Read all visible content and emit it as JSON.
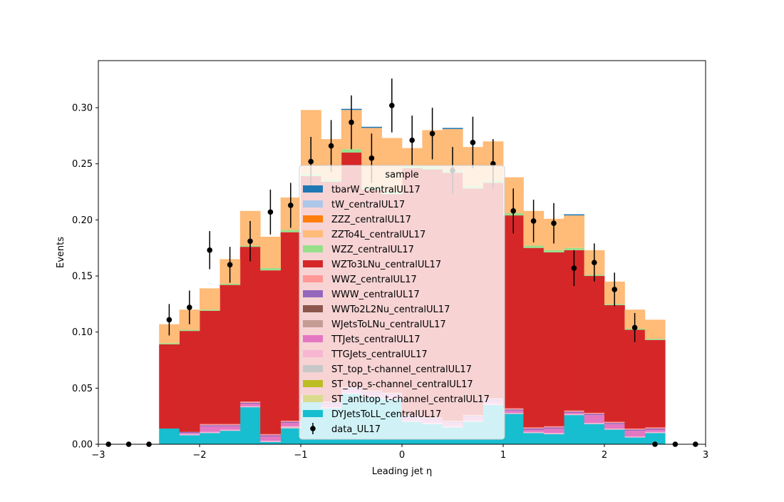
{
  "chart_data": {
    "type": "bar",
    "stacked": true,
    "xlabel": "Leading jet  η",
    "ylabel": "Events",
    "xlim": [
      -3,
      3
    ],
    "ylim": [
      0,
      0.342
    ],
    "xticks": [
      -3,
      -2,
      -1,
      0,
      1,
      2,
      3
    ],
    "xtick_labels": [
      "−3",
      "−2",
      "−1",
      "0",
      "1",
      "2",
      "3"
    ],
    "yticks": [
      0.0,
      0.05,
      0.1,
      0.15,
      0.2,
      0.25,
      0.3
    ],
    "ytick_labels": [
      "0.00",
      "0.05",
      "0.10",
      "0.15",
      "0.20",
      "0.25",
      "0.30"
    ],
    "bin_edges": [
      -3.0,
      -2.8,
      -2.6,
      -2.4,
      -2.2,
      -2.0,
      -1.8,
      -1.6,
      -1.4,
      -1.2,
      -1.0,
      -0.8,
      -0.6,
      -0.4,
      -0.2,
      0.0,
      0.2,
      0.4,
      0.6,
      0.8,
      1.0,
      1.2,
      1.4,
      1.6,
      1.8,
      2.0,
      2.2,
      2.4,
      2.6,
      2.8,
      3.0
    ],
    "legend_title": "sample",
    "legend_position": "center",
    "series": [
      {
        "name": "DYJetsToLL_centralUL17",
        "color": "#17becf",
        "values": [
          0,
          0,
          0,
          0.014,
          0.008,
          0.01,
          0.012,
          0.033,
          0.002,
          0.014,
          0.038,
          0.032,
          0.045,
          0.042,
          0.04,
          0.02,
          0.018,
          0.015,
          0.02,
          0.035,
          0.027,
          0.01,
          0.009,
          0.026,
          0.018,
          0.013,
          0.006,
          0.01,
          0,
          0
        ]
      },
      {
        "name": "ST_antitop_t-channel_centralUL17",
        "color": "#dbdb8d",
        "values": [
          0,
          0,
          0,
          0,
          0,
          0,
          0,
          0,
          0,
          0,
          0,
          0,
          0,
          0,
          0,
          0,
          0,
          0,
          0,
          0,
          0,
          0,
          0,
          0,
          0,
          0,
          0,
          0,
          0,
          0
        ]
      },
      {
        "name": "ST_top_s-channel_centralUL17",
        "color": "#bcbd22",
        "values": [
          0,
          0,
          0,
          0,
          0,
          0,
          0,
          0,
          0,
          0,
          0,
          0,
          0,
          0,
          0,
          0,
          0,
          0,
          0,
          0,
          0,
          0,
          0,
          0,
          0,
          0,
          0,
          0,
          0,
          0
        ]
      },
      {
        "name": "ST_top_t-channel_centralUL17",
        "color": "#c7c7c7",
        "values": [
          0,
          0,
          0,
          0,
          0,
          0,
          0,
          0,
          0,
          0.001,
          0,
          0,
          0,
          0,
          0,
          0,
          0,
          0,
          0,
          0,
          0,
          0,
          0,
          0,
          0,
          0,
          0,
          0,
          0,
          0
        ]
      },
      {
        "name": "TTGJets_centralUL17",
        "color": "#f7b6d2",
        "values": [
          0,
          0,
          0,
          0,
          0.001,
          0.001,
          0.001,
          0.001,
          0.001,
          0.001,
          0.001,
          0.001,
          0.001,
          0.001,
          0.001,
          0.001,
          0.001,
          0.001,
          0.001,
          0.001,
          0.001,
          0.001,
          0.001,
          0.001,
          0.001,
          0.001,
          0.001,
          0.001,
          0,
          0
        ]
      },
      {
        "name": "TTJets_centralUL17",
        "color": "#e377c2",
        "values": [
          0,
          0,
          0,
          0,
          0.001,
          0.005,
          0.003,
          0.002,
          0.004,
          0.003,
          0.003,
          0.003,
          0.003,
          0.003,
          0.003,
          0.003,
          0.003,
          0.003,
          0.003,
          0.003,
          0.002,
          0.002,
          0.004,
          0.001,
          0.007,
          0.004,
          0.005,
          0.002,
          0,
          0
        ]
      },
      {
        "name": "WJetsToLNu_centralUL17",
        "color": "#c49c94",
        "values": [
          0,
          0,
          0,
          0,
          0,
          0,
          0,
          0,
          0,
          0,
          0,
          0,
          0,
          0,
          0,
          0,
          0,
          0,
          0,
          0,
          0,
          0,
          0,
          0,
          0,
          0,
          0,
          0,
          0,
          0
        ]
      },
      {
        "name": "WWTo2L2Nu_centralUL17",
        "color": "#8c564b",
        "values": [
          0,
          0,
          0,
          0,
          0,
          0,
          0,
          0,
          0,
          0,
          0,
          0,
          0,
          0,
          0,
          0,
          0,
          0,
          0,
          0,
          0,
          0,
          0,
          0,
          0,
          0,
          0,
          0,
          0,
          0
        ]
      },
      {
        "name": "WWW_centralUL17",
        "color": "#9467bd",
        "values": [
          0,
          0,
          0,
          0,
          0.001,
          0.001,
          0.001,
          0.001,
          0.001,
          0.001,
          0.001,
          0.001,
          0.001,
          0.001,
          0.001,
          0.001,
          0.001,
          0.001,
          0.001,
          0.001,
          0.001,
          0.001,
          0.001,
          0.001,
          0.001,
          0.001,
          0.001,
          0.001,
          0,
          0
        ]
      },
      {
        "name": "WWZ_centralUL17",
        "color": "#ff9896",
        "values": [
          0,
          0,
          0,
          0,
          0,
          0.001,
          0.001,
          0.001,
          0.001,
          0.001,
          0.001,
          0.001,
          0.001,
          0.001,
          0.001,
          0.001,
          0.001,
          0.001,
          0.001,
          0.001,
          0.001,
          0.001,
          0.001,
          0.001,
          0.001,
          0.001,
          0.001,
          0.001,
          0,
          0
        ]
      },
      {
        "name": "WZTo3LNu_centralUL17",
        "color": "#d62728",
        "values": [
          0,
          0,
          0,
          0.075,
          0.09,
          0.101,
          0.124,
          0.138,
          0.146,
          0.168,
          0.195,
          0.196,
          0.209,
          0.179,
          0.177,
          0.22,
          0.221,
          0.221,
          0.202,
          0.192,
          0.172,
          0.16,
          0.155,
          0.143,
          0.122,
          0.104,
          0.088,
          0.078,
          0,
          0
        ]
      },
      {
        "name": "WZZ_centralUL17",
        "color": "#98df8a",
        "values": [
          0,
          0,
          0,
          0.001,
          0.001,
          0.001,
          0.001,
          0.001,
          0.002,
          0.002,
          0.002,
          0.002,
          0.003,
          0.002,
          0.002,
          0.002,
          0.002,
          0.002,
          0.002,
          0.002,
          0.002,
          0.002,
          0.002,
          0.002,
          0.001,
          0.001,
          0.001,
          0.001,
          0,
          0
        ]
      },
      {
        "name": "ZZTo4L_centralUL17",
        "color": "#ffbb78",
        "values": [
          0,
          0,
          0,
          0.017,
          0.018,
          0.019,
          0.022,
          0.031,
          0.028,
          0.029,
          0.057,
          0.036,
          0.035,
          0.053,
          0.048,
          0.016,
          0.033,
          0.037,
          0.035,
          0.035,
          0.032,
          0.031,
          0.028,
          0.029,
          0.022,
          0.02,
          0.017,
          0.017,
          0,
          0
        ]
      },
      {
        "name": "ZZZ_centralUL17",
        "color": "#ff7f0e",
        "values": [
          0,
          0,
          0,
          0,
          0,
          0,
          0,
          0,
          0,
          0,
          0,
          0,
          0,
          0,
          0,
          0,
          0,
          0,
          0,
          0,
          0,
          0,
          0,
          0,
          0,
          0,
          0,
          0,
          0,
          0
        ]
      },
      {
        "name": "tW_centralUL17",
        "color": "#aec7e8",
        "values": [
          0,
          0,
          0,
          0,
          0,
          0,
          0,
          0,
          0,
          0,
          0,
          0,
          0,
          0,
          0,
          0,
          0,
          0,
          0,
          0,
          0,
          0,
          0,
          0,
          0,
          0,
          0,
          0,
          0,
          0
        ]
      },
      {
        "name": "tbarW_centralUL17",
        "color": "#1f77b4",
        "values": [
          0,
          0,
          0,
          0,
          0,
          0,
          0,
          0,
          0,
          0,
          0,
          0,
          0.001,
          0.001,
          0,
          0,
          0,
          0.001,
          0,
          0,
          0,
          0,
          0,
          0.001,
          0,
          0,
          0,
          0,
          0,
          0
        ]
      }
    ],
    "data_points": {
      "name": "data_UL17",
      "color": "#000000",
      "x": [
        -2.9,
        -2.7,
        -2.5,
        -2.3,
        -2.1,
        -1.9,
        -1.7,
        -1.5,
        -1.3,
        -1.1,
        -0.9,
        -0.7,
        -0.5,
        -0.3,
        -0.1,
        0.1,
        0.3,
        0.5,
        0.7,
        0.9,
        1.1,
        1.3,
        1.5,
        1.7,
        1.9,
        2.1,
        2.3,
        2.5,
        2.7,
        2.9
      ],
      "y": [
        0,
        0,
        0,
        0.111,
        0.122,
        0.173,
        0.16,
        0.181,
        0.207,
        0.213,
        0.252,
        0.266,
        0.287,
        0.255,
        0.302,
        0.271,
        0.277,
        0.244,
        0.269,
        0.25,
        0.208,
        0.199,
        0.197,
        0.157,
        0.162,
        0.138,
        0.104,
        0,
        0,
        0
      ],
      "yerr": [
        0,
        0,
        0,
        0.014,
        0.015,
        0.017,
        0.016,
        0.018,
        0.02,
        0.02,
        0.022,
        0.023,
        0.024,
        0.022,
        0.024,
        0.022,
        0.023,
        0.021,
        0.023,
        0.022,
        0.02,
        0.019,
        0.018,
        0.016,
        0.017,
        0.015,
        0.013,
        0,
        0,
        0
      ]
    },
    "legend_order": [
      "tbarW_centralUL17",
      "tW_centralUL17",
      "ZZZ_centralUL17",
      "ZZTo4L_centralUL17",
      "WZZ_centralUL17",
      "WZTo3LNu_centralUL17",
      "WWZ_centralUL17",
      "WWW_centralUL17",
      "WWTo2L2Nu_centralUL17",
      "WJetsToLNu_centralUL17",
      "TTJets_centralUL17",
      "TTGJets_centralUL17",
      "ST_top_t-channel_centralUL17",
      "ST_top_s-channel_centralUL17",
      "ST_antitop_t-channel_centralUL17",
      "DYJetsToLL_centralUL17"
    ]
  }
}
